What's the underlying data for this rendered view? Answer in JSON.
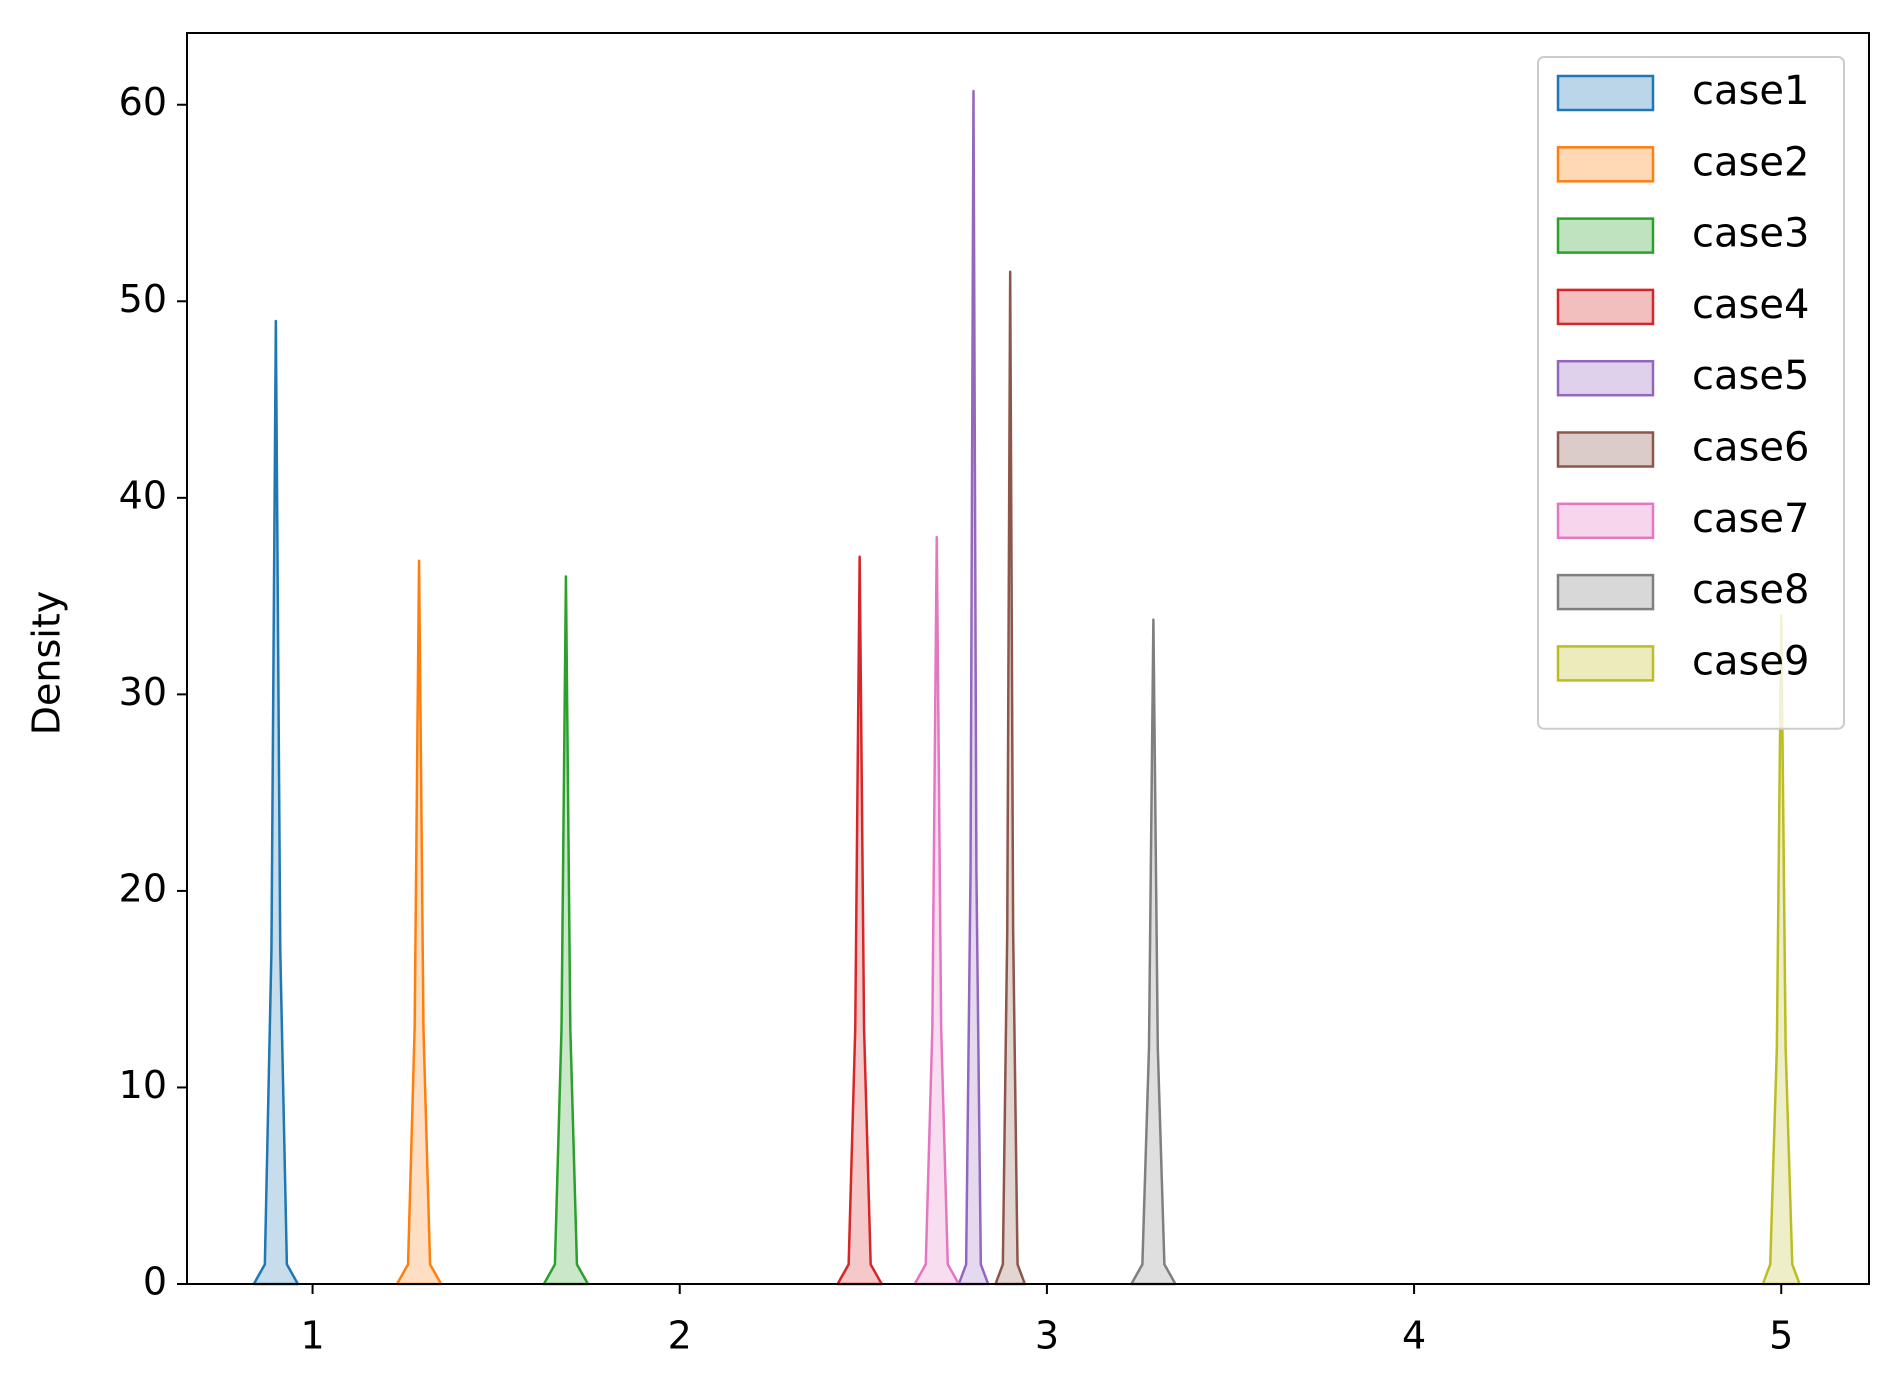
{
  "chart_data": {
    "type": "kde",
    "y_label": "Density",
    "xlim": [
      0.658,
      5.239
    ],
    "ylim": [
      0,
      63.65
    ],
    "xticks": [
      1,
      2,
      3,
      4,
      5
    ],
    "yticks": [
      0,
      10,
      20,
      30,
      40,
      50,
      60
    ],
    "legend": "upper right",
    "series": [
      {
        "name": "case1",
        "color": "#1f77b4",
        "x": [
          0.84,
          0.87,
          0.888,
          0.9,
          0.912,
          0.93,
          0.96
        ],
        "values": [
          0,
          1,
          17,
          49,
          17,
          1,
          0
        ]
      },
      {
        "name": "case2",
        "color": "#ff7f0e",
        "x": [
          1.23,
          1.26,
          1.278,
          1.29,
          1.302,
          1.32,
          1.35
        ],
        "values": [
          0,
          1,
          13,
          36.8,
          13,
          1,
          0
        ]
      },
      {
        "name": "case3",
        "color": "#2ca02c",
        "x": [
          1.63,
          1.66,
          1.678,
          1.69,
          1.702,
          1.72,
          1.75
        ],
        "values": [
          0,
          1,
          13,
          36,
          13,
          1,
          0
        ]
      },
      {
        "name": "case4",
        "color": "#d62728",
        "x": [
          2.43,
          2.46,
          2.478,
          2.49,
          2.502,
          2.52,
          2.55
        ],
        "values": [
          0,
          1,
          13,
          37,
          13,
          1,
          0
        ]
      },
      {
        "name": "case5",
        "color": "#9467bd",
        "x": [
          2.76,
          2.78,
          2.792,
          2.8,
          2.808,
          2.82,
          2.84
        ],
        "values": [
          0,
          1,
          21,
          60.7,
          21,
          1,
          0
        ]
      },
      {
        "name": "case6",
        "color": "#8c564b",
        "x": [
          2.86,
          2.88,
          2.892,
          2.9,
          2.908,
          2.92,
          2.94
        ],
        "values": [
          0,
          1,
          18,
          51.5,
          18,
          1,
          0
        ]
      },
      {
        "name": "case7",
        "color": "#e377c2",
        "x": [
          2.64,
          2.67,
          2.688,
          2.7,
          2.712,
          2.73,
          2.76
        ],
        "values": [
          0,
          1,
          13,
          38,
          13,
          1,
          0
        ]
      },
      {
        "name": "case8",
        "color": "#7f7f7f",
        "x": [
          3.23,
          3.26,
          3.278,
          3.29,
          3.302,
          3.32,
          3.35
        ],
        "values": [
          0,
          1,
          12,
          33.8,
          12,
          1,
          0
        ]
      },
      {
        "name": "case9",
        "color": "#bcbd22",
        "x": [
          4.95,
          4.97,
          4.988,
          5.0,
          5.012,
          5.03,
          5.05
        ],
        "values": [
          0,
          1,
          12,
          34,
          12,
          1,
          0
        ]
      }
    ]
  }
}
